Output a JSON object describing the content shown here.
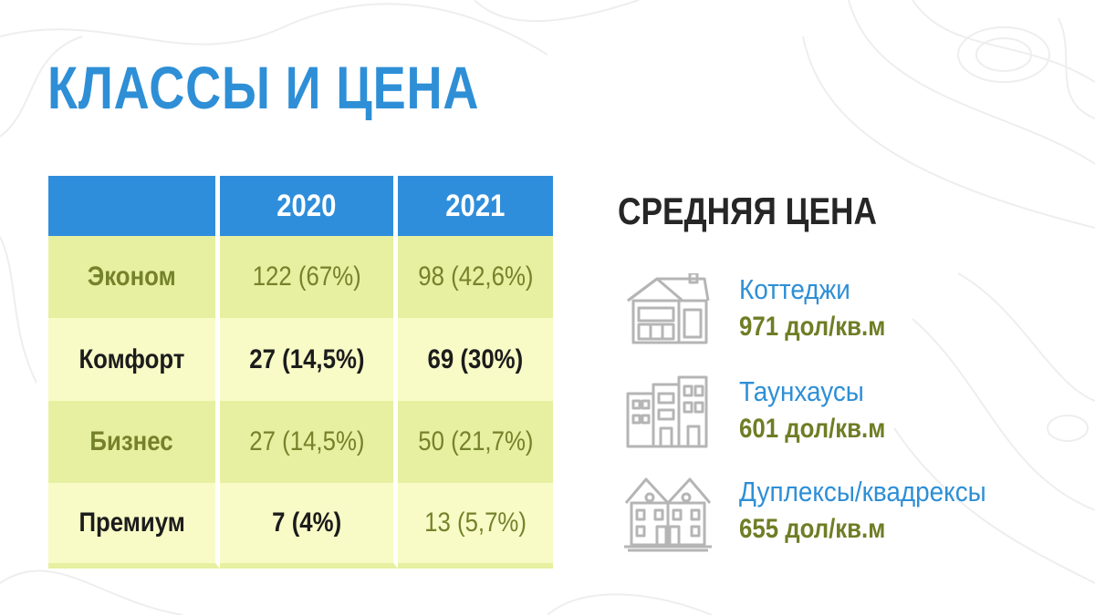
{
  "title": "КЛАССЫ И ЦЕНА",
  "table": {
    "columns": [
      "",
      "2020",
      "2021"
    ],
    "rows": [
      {
        "label": "Эконом",
        "v2020": "122 (67%)",
        "v2021": "98 (42,6%)"
      },
      {
        "label": "Комфорт",
        "v2020": "27 (14,5%)",
        "v2021": "69 (30%)"
      },
      {
        "label": "Бизнес",
        "v2020": "27 (14,5%)",
        "v2021": "50 (21,7%)"
      },
      {
        "label": "Премиум",
        "v2020": "7 (4%)",
        "v2021": "13 (5,7%)"
      }
    ]
  },
  "avg_price": {
    "title": "СРЕДНЯЯ ЦЕНА",
    "items": [
      {
        "icon": "cottage-icon",
        "name": "Коттеджи",
        "value": "971 дол/кв.м"
      },
      {
        "icon": "townhouse-icon",
        "name": "Таунхаусы",
        "value": "601 дол/кв.м"
      },
      {
        "icon": "duplex-icon",
        "name": "Дуплексы/квадрексы",
        "value": "655 дол/кв.м"
      }
    ]
  },
  "colors": {
    "accent_blue": "#2e8fd6",
    "header_blue": "#2f8edb",
    "row_green": "#e6f0a0",
    "row_light": "#f8fbc6",
    "olive_text": "#75822b"
  }
}
